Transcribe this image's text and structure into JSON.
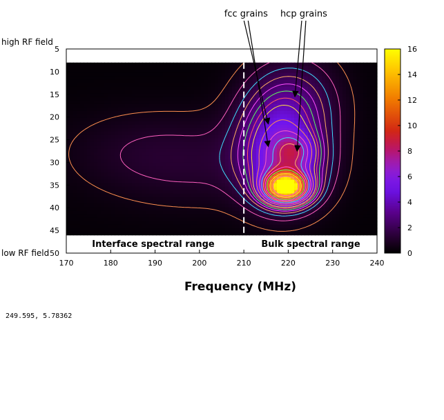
{
  "chart_data": {
    "type": "heatmap",
    "title": "",
    "xlabel": "Frequency (MHz)",
    "ylabel": "",
    "xlim": [
      170,
      240
    ],
    "ylim": [
      50,
      5
    ],
    "x_ticks": [
      "170",
      "180",
      "190",
      "200",
      "210",
      "220",
      "230",
      "240"
    ],
    "y_ticks": [
      "5",
      "10",
      "15",
      "20",
      "25",
      "30",
      "35",
      "40",
      "45",
      "50"
    ],
    "y_end_labels": {
      "top": "high RF field",
      "bottom": "low RF field"
    },
    "colorbar": {
      "range": [
        0,
        16
      ],
      "ticks": [
        "0",
        "2",
        "4",
        "6",
        "8",
        "10",
        "12",
        "14",
        "16"
      ]
    },
    "data_y_range": [
      8,
      46
    ],
    "divider_x": 210,
    "region_labels": {
      "left": "Interface spectral range",
      "right": "Bulk spectral range"
    },
    "annotations": [
      {
        "text": "fcc grains",
        "text_x": 210.5,
        "targets": [
          [
            215.5,
            21.5
          ],
          [
            215.5,
            26.5
          ]
        ]
      },
      {
        "text": "hcp grains",
        "text_x": 223.5,
        "targets": [
          [
            221.5,
            15.5
          ],
          [
            222,
            27.5
          ]
        ]
      }
    ],
    "peaks": [
      {
        "x": 219.5,
        "y": 35.5,
        "amp": 15,
        "sx": 3.2,
        "sy": 2.2
      },
      {
        "x": 219,
        "y": 31,
        "amp": 5,
        "sx": 6,
        "sy": 6
      },
      {
        "x": 221.5,
        "y": 27.5,
        "amp": 2.5,
        "sx": 3,
        "sy": 2.5
      },
      {
        "x": 221,
        "y": 17,
        "amp": 2.2,
        "sx": 7,
        "sy": 7
      },
      {
        "x": 217,
        "y": 22,
        "amp": 1.8,
        "sx": 6,
        "sy": 6
      },
      {
        "x": 200,
        "y": 30,
        "amp": 0.9,
        "sx": 16,
        "sy": 7
      },
      {
        "x": 185,
        "y": 27,
        "amp": 0.4,
        "sx": 12,
        "sy": 6
      }
    ],
    "contour_levels": [
      0.5,
      1,
      1.5,
      2,
      2.5,
      3,
      3.5,
      4,
      5,
      6,
      7,
      8,
      9,
      10,
      11,
      12,
      13,
      14
    ]
  },
  "readout": "249.595,  5.78362"
}
